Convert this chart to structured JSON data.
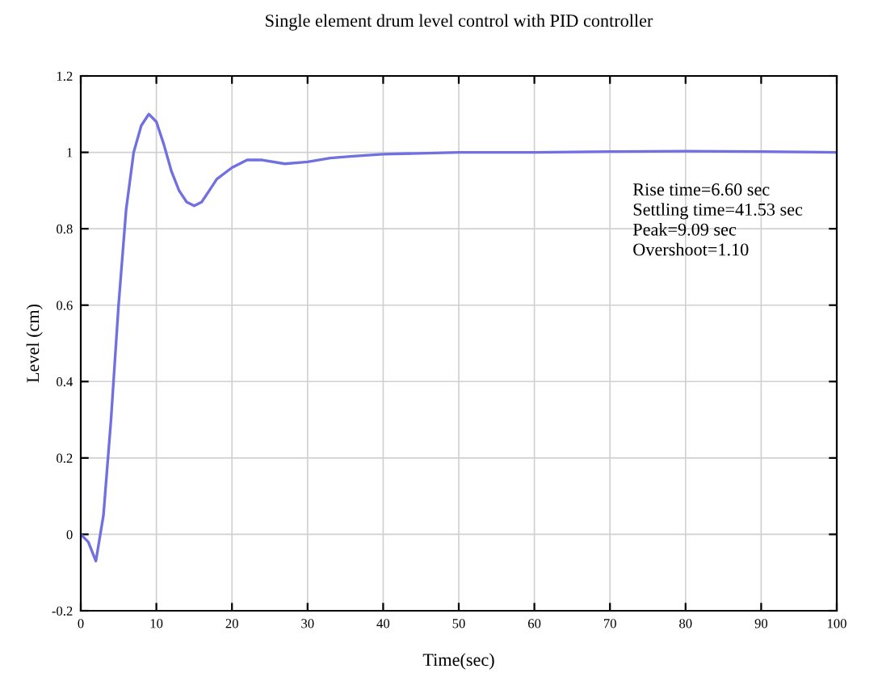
{
  "chart_data": {
    "type": "line",
    "title": "Single element drum level control with PID controller",
    "xlabel": "Time(sec)",
    "ylabel": "Level (cm)",
    "annotations": [
      "Rise time=6.60 sec\nSettling time=41.53 sec\nPeak=9.09 sec\nOvershoot=1.10"
    ],
    "x": [
      0,
      1,
      2,
      3,
      4,
      5,
      6,
      7,
      8,
      9,
      10,
      11,
      12,
      13,
      14,
      15,
      16,
      17,
      18,
      20,
      22,
      24,
      27,
      30,
      33,
      36,
      40,
      50,
      60,
      70,
      80,
      90,
      100
    ],
    "series": [
      {
        "color": "#7070e0",
        "values": [
          0,
          -0.02,
          -0.07,
          0.05,
          0.3,
          0.6,
          0.85,
          1.0,
          1.07,
          1.1,
          1.08,
          1.02,
          0.95,
          0.9,
          0.87,
          0.86,
          0.87,
          0.9,
          0.93,
          0.96,
          0.98,
          0.98,
          0.97,
          0.975,
          0.985,
          0.99,
          0.995,
          1.0,
          1.0,
          1.002,
          1.003,
          1.002,
          1.0
        ]
      }
    ],
    "xlim": [
      0,
      100
    ],
    "xticks": [
      0,
      10,
      20,
      30,
      40,
      50,
      60,
      70,
      80,
      90,
      100
    ],
    "ylim": [
      -0.2,
      1.2
    ],
    "yticks": [
      {
        "value": -0.2,
        "label": "-0.2"
      },
      0,
      0.2,
      0.4,
      0.6,
      0.8,
      1,
      1.2
    ],
    "grid": true,
    "line_style": "solid",
    "marker": "none"
  }
}
